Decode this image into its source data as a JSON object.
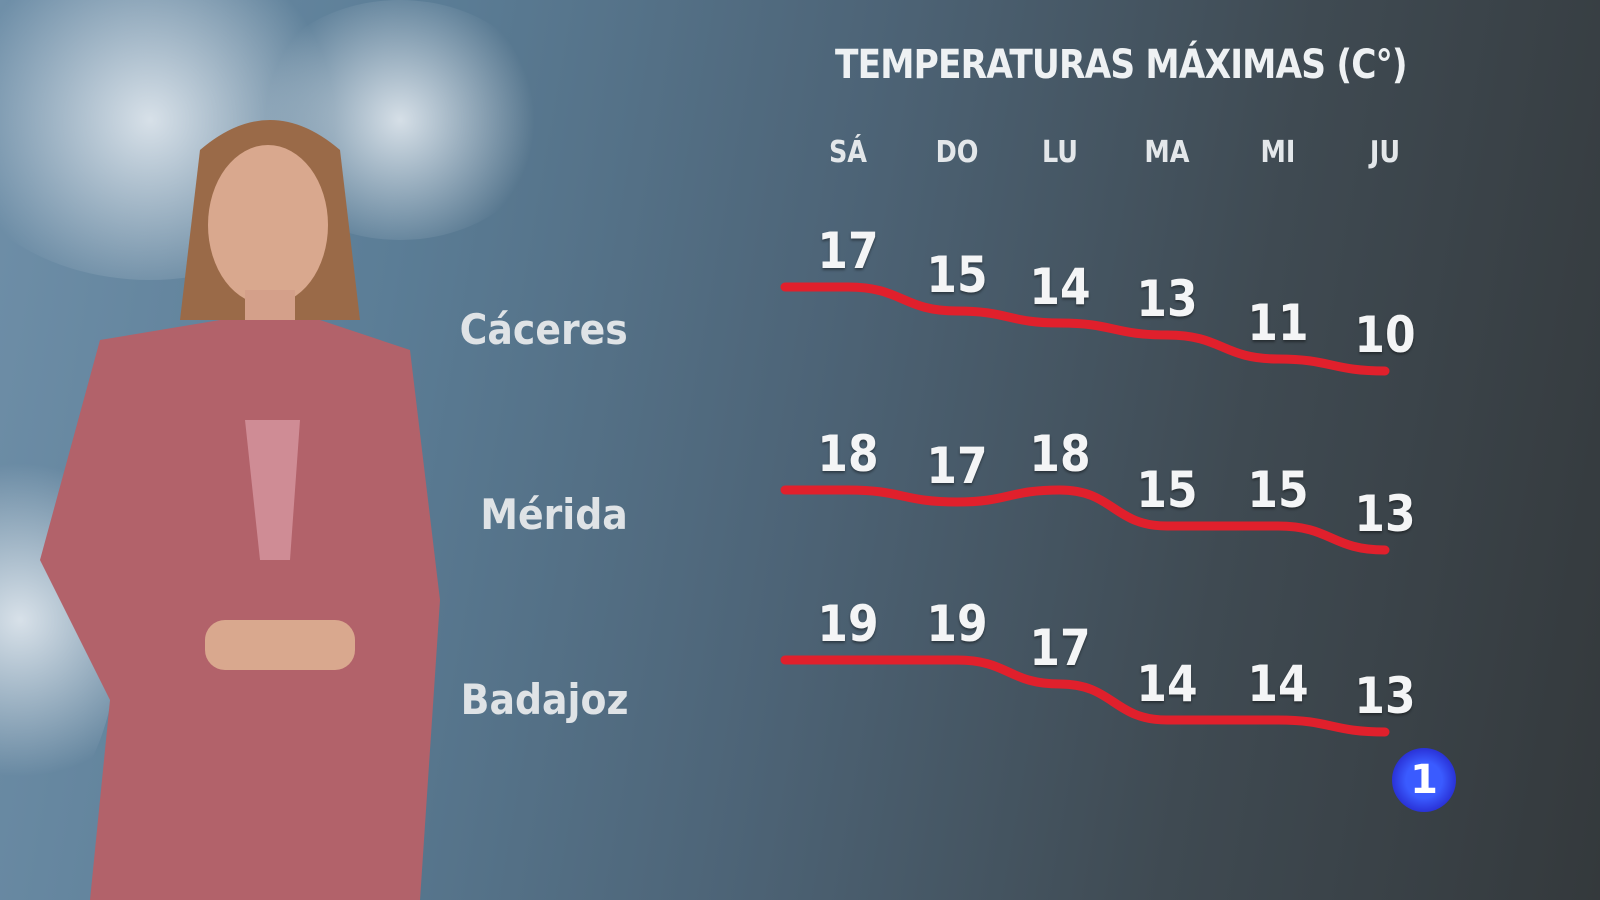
{
  "chart_data": {
    "type": "line",
    "title": "TEMPERATURAS MÁXIMAS (C°)",
    "categories": [
      "SÁ",
      "DO",
      "LU",
      "MA",
      "MI",
      "JU"
    ],
    "series": [
      {
        "name": "Cáceres",
        "values": [
          17,
          15,
          14,
          13,
          11,
          10
        ]
      },
      {
        "name": "Mérida",
        "values": [
          18,
          17,
          18,
          15,
          15,
          13
        ]
      },
      {
        "name": "Badajoz",
        "values": [
          19,
          19,
          17,
          14,
          14,
          13
        ]
      }
    ],
    "line_color": "#e0202c",
    "grid": false
  },
  "logo": {
    "text": "1",
    "color": "#2f45ff"
  }
}
